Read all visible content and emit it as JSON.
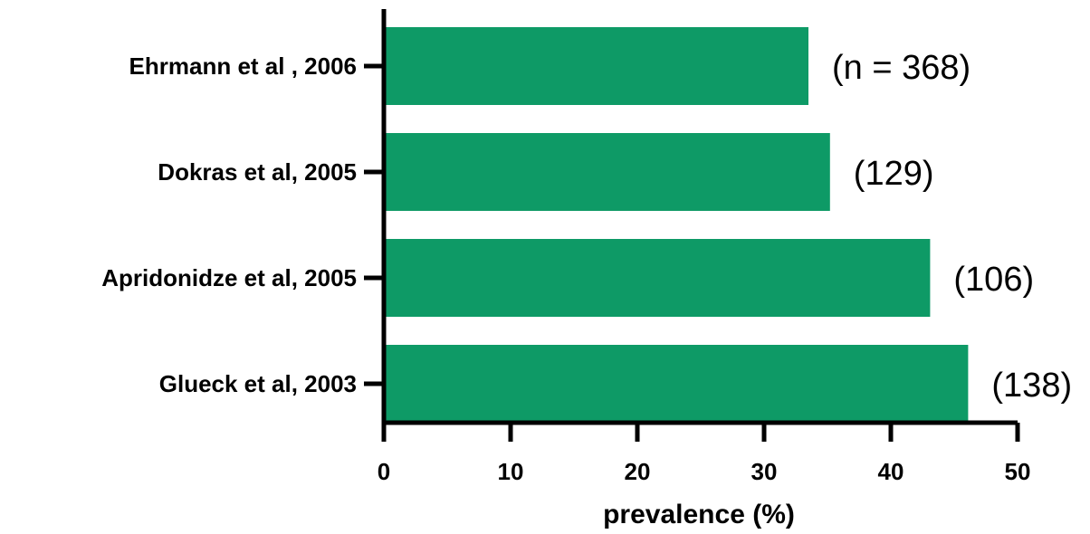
{
  "chart_data": {
    "type": "bar",
    "orientation": "horizontal",
    "categories": [
      "Ehrmann et al , 2006",
      "Dokras et al, 2005",
      "Apridonidze et al, 2005",
      "Glueck et al, 2003"
    ],
    "values": [
      33.5,
      35.2,
      43.1,
      46.1
    ],
    "data_labels": [
      "(n = 368)",
      "(129)",
      "(106)",
      "(138)"
    ],
    "xlabel": "prevalence (%)",
    "ylabel": "",
    "title": "",
    "xlim": [
      0,
      50
    ],
    "xticks": [
      "0",
      "10",
      "20",
      "30",
      "40",
      "50"
    ],
    "grid": false,
    "legend": "none",
    "bar_color": "#0e9a66"
  }
}
